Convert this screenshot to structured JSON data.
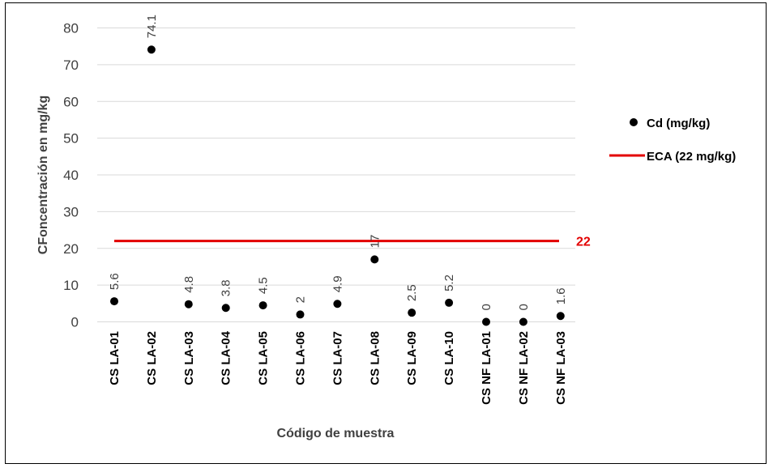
{
  "chart_data": {
    "type": "scatter",
    "categories": [
      "CS LA-01",
      "CS LA-02",
      "CS LA-03",
      "CS LA-04",
      "CS LA-05",
      "CS LA-06",
      "CS LA-07",
      "CS LA-08",
      "CS LA-09",
      "CS LA-10",
      "CS NF LA-01",
      "CS NF LA-02",
      "CS NF LA-03"
    ],
    "series": [
      {
        "name": "Cd (mg/kg)",
        "color": "#000000",
        "values": [
          5.6,
          74.1,
          4.8,
          3.8,
          4.5,
          2,
          4.9,
          17,
          2.5,
          5.2,
          0,
          0,
          1.6
        ],
        "data_labels": [
          "5.6",
          "74.1",
          "4.8",
          "3.8",
          "4.5",
          "2",
          "4.9",
          "17",
          "2.5",
          "5.2",
          "0",
          "0",
          "1.6"
        ]
      }
    ],
    "reference_line": {
      "name": "ECA (22 mg/kg)",
      "value": 22,
      "label": "22",
      "color": "#e30000"
    },
    "xlabel": "Código de muestra",
    "ylabel": "CFoncentración en mg/kg",
    "ylim": [
      0,
      80
    ],
    "yticks": [
      0,
      10,
      20,
      30,
      40,
      50,
      60,
      70,
      80
    ],
    "grid": true,
    "legend_position": "right"
  }
}
